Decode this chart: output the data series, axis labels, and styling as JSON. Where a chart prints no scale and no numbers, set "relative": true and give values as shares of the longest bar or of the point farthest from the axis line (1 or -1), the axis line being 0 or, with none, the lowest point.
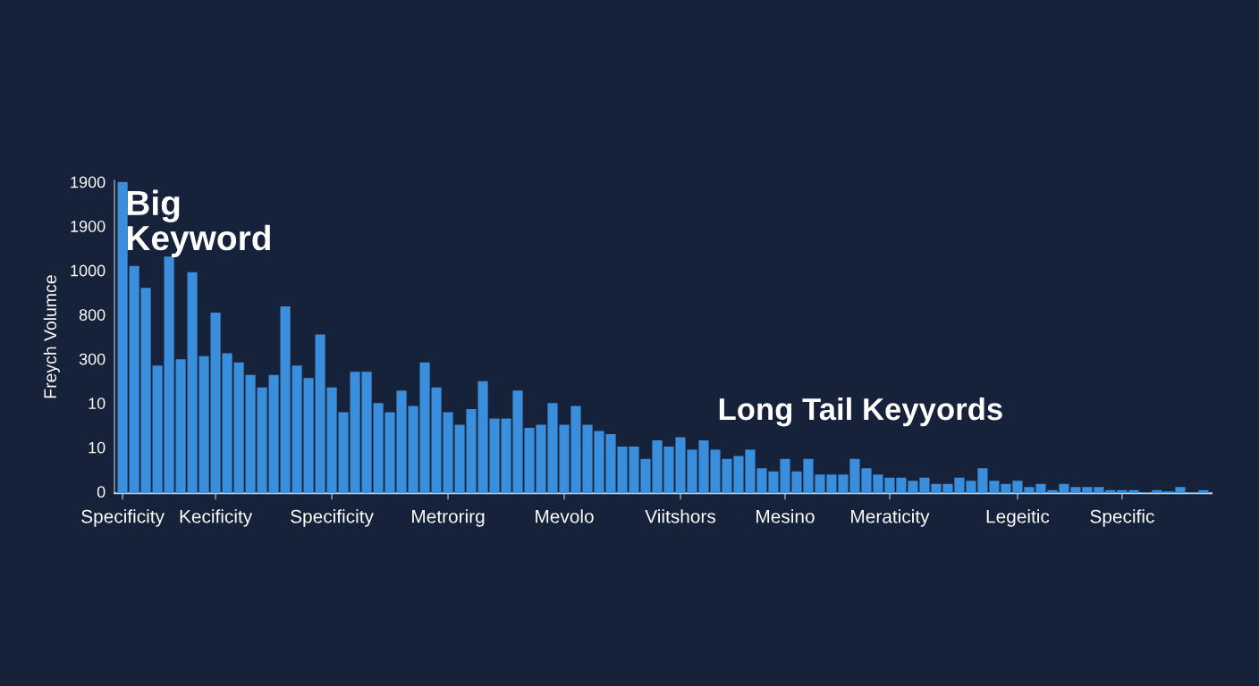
{
  "chart_data": {
    "type": "bar",
    "relative": true,
    "ylabel": "Freych Volumce",
    "categories": [
      "Specificity",
      null,
      null,
      null,
      null,
      null,
      null,
      null,
      "Kecificity",
      null,
      null,
      null,
      null,
      null,
      null,
      null,
      null,
      null,
      "Specificity",
      null,
      null,
      null,
      null,
      null,
      null,
      null,
      null,
      null,
      "Metrorirg",
      null,
      null,
      null,
      null,
      null,
      null,
      null,
      null,
      null,
      "Mevolo",
      null,
      null,
      null,
      null,
      null,
      null,
      null,
      null,
      null,
      "Viitshors",
      null,
      null,
      null,
      null,
      null,
      null,
      null,
      null,
      "Mesino",
      null,
      null,
      null,
      null,
      null,
      null,
      null,
      null,
      "Meraticity",
      null,
      null,
      null,
      null,
      null,
      null,
      null,
      null,
      null,
      null,
      "Legeitic",
      null,
      null,
      null,
      null,
      null,
      null,
      null,
      null,
      "Specific",
      null,
      null,
      null,
      null,
      null,
      null,
      null
    ],
    "values": [
      1,
      0.73,
      0.66,
      0.41,
      0.76,
      0.43,
      0.71,
      0.44,
      0.58,
      0.45,
      0.42,
      0.38,
      0.34,
      0.38,
      0.6,
      0.41,
      0.37,
      0.51,
      0.34,
      0.26,
      0.39,
      0.39,
      0.29,
      0.26,
      0.33,
      0.28,
      0.42,
      0.34,
      0.26,
      0.22,
      0.27,
      0.36,
      0.24,
      0.24,
      0.33,
      0.21,
      0.22,
      0.29,
      0.22,
      0.28,
      0.22,
      0.2,
      0.19,
      0.15,
      0.15,
      0.11,
      0.17,
      0.15,
      0.18,
      0.14,
      0.17,
      0.14,
      0.11,
      0.12,
      0.14,
      0.08,
      0.07,
      0.11,
      0.07,
      0.11,
      0.06,
      0.06,
      0.06,
      0.11,
      0.08,
      0.06,
      0.05,
      0.05,
      0.04,
      0.05,
      0.03,
      0.03,
      0.05,
      0.04,
      0.08,
      0.04,
      0.03,
      0.04,
      0.02,
      0.03,
      0.01,
      0.03,
      0.02,
      0.02,
      0.02,
      0.01,
      0.01,
      0.01,
      0.003,
      0.01,
      0.006,
      0.02,
      0.003,
      0.01
    ],
    "color": "#3a8edb",
    "annotations": [
      "Big\nKeyword",
      "Long Tail Keyyords",
      "1900",
      "1900",
      "1000",
      "800",
      "300",
      "10",
      "10",
      "0"
    ]
  }
}
